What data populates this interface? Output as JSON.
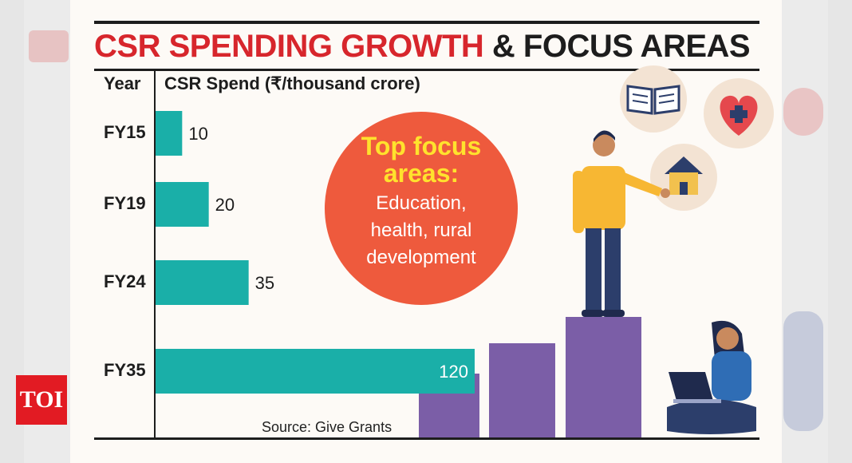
{
  "header": {
    "title_red": "CSR SPENDING GROWTH",
    "title_black": "& FOCUS AREAS",
    "col_year": "Year",
    "col_spend": "CSR Spend (₹/thousand crore)"
  },
  "focus": {
    "heading_line1": "Top focus",
    "heading_line2": "areas:",
    "body_line1": "Education,",
    "body_line2": "health, rural",
    "body_line3": "development"
  },
  "source": "Source: Give Grants",
  "logo": "TOI",
  "colors": {
    "bar": "#1aafa8",
    "title_red": "#d7262c",
    "circle": "#ee5a3d",
    "circle_heading": "#ffe22d",
    "steps": "#7b5ea7"
  },
  "illustration": {
    "icons": [
      "book-icon",
      "heart-plus-icon",
      "house-icon"
    ],
    "figures": [
      "standing-man-figure",
      "seated-woman-laptop-figure",
      "step-blocks"
    ]
  },
  "chart_data": {
    "type": "bar",
    "orientation": "horizontal",
    "title": "CSR SPENDING GROWTH & FOCUS AREAS",
    "xlabel": "CSR Spend (₹/thousand crore)",
    "ylabel": "Year",
    "categories": [
      "FY15",
      "FY19",
      "FY24",
      "FY35"
    ],
    "values": [
      10,
      20,
      35,
      120
    ],
    "value_labels": [
      "10",
      "20",
      "35",
      "120"
    ],
    "xlim": [
      0,
      120
    ],
    "grid": false,
    "legend": "none"
  }
}
